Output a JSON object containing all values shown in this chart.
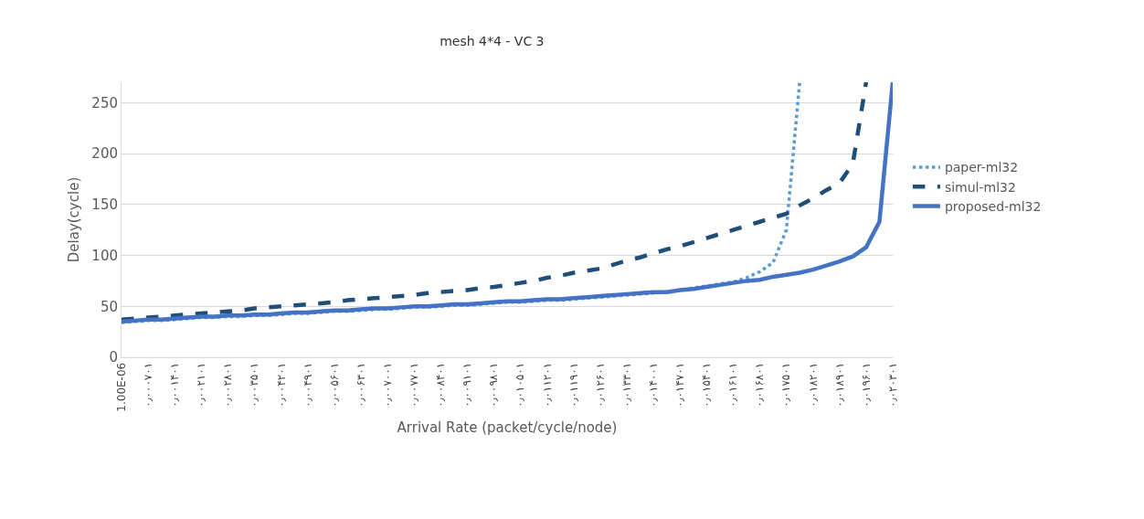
{
  "chart_data": {
    "type": "line",
    "title": "mesh 4*4 - VC 3",
    "xlabel": "Arrival Rate (packet/cycle/node)",
    "ylabel": "Delay(cycle)",
    "categories": [
      "1.00E-06",
      null,
      "۰٫۰۰۰۷۰۱",
      null,
      "۰٫۰۰۱۴۰۱",
      null,
      "۰٫۰۰۲۱۰۱",
      null,
      "۰٫۰۰۲۸۰۱",
      null,
      "۰٫۰۰۳۵۰۱",
      null,
      "۰٫۰۰۴۲۰۱",
      null,
      "۰٫۰۰۴۹۰۱",
      null,
      "۰٫۰۰۵۶۰۱",
      null,
      "۰٫۰۰۶۳۰۱",
      null,
      "۰٫۰۰۷۰۰۱",
      null,
      "۰٫۰۰۷۷۰۱",
      null,
      "۰٫۰۰۸۴۰۱",
      null,
      "۰٫۰۰۹۱۰۱",
      null,
      "۰٫۰۰۹۸۰۱",
      null,
      "۰٫۰۱۰۵۰۱",
      null,
      "۰٫۰۱۱۲۰۱",
      null,
      "۰٫۰۱۱۹۰۱",
      null,
      "۰٫۰۱۲۶۰۱",
      null,
      "۰٫۰۱۳۳۰۱",
      null,
      "۰٫۰۱۴۰۰۱",
      null,
      "۰٫۰۱۴۷۰۱",
      null,
      "۰٫۰۱۵۴۰۱",
      null,
      "۰٫۰۱۶۱۰۱",
      null,
      "۰٫۰۱۶۸۰۱",
      null,
      "۰٫۰۱۷۵۰۱",
      null,
      "۰٫۰۱۸۲۰۱",
      null,
      "۰٫۰۱۸۹۰۱",
      null,
      "۰٫۰۱۹۶۰۱",
      null,
      "۰٫۰۲۰۳۰۱"
    ],
    "ylim": [
      0,
      270
    ],
    "yticks": [
      0,
      50,
      100,
      150,
      200,
      250
    ],
    "grid": "y",
    "legend": "right",
    "series": [
      {
        "name": "paper-ml32",
        "color": "#5b9bd5",
        "line_style": "dotted",
        "values": [
          34,
          35,
          36,
          36,
          37,
          38,
          39,
          39,
          40,
          40,
          41,
          41,
          42,
          43,
          43,
          44,
          45,
          45,
          46,
          47,
          47,
          48,
          49,
          49,
          50,
          51,
          51,
          52,
          53,
          54,
          54,
          55,
          56,
          56,
          57,
          58,
          59,
          60,
          61,
          62,
          63,
          64,
          66,
          68,
          70,
          72,
          74,
          78,
          84,
          93,
          125,
          270,
          null,
          null,
          null,
          null,
          null,
          null,
          null
        ]
      },
      {
        "name": "simul-ml32",
        "color": "#1f4e79",
        "line_style": "dashed",
        "values": [
          37,
          38,
          39,
          40,
          41,
          42,
          43,
          44,
          45,
          46,
          48,
          49,
          50,
          51,
          52,
          53,
          54,
          56,
          57,
          58,
          59,
          60,
          61,
          63,
          64,
          65,
          66,
          68,
          69,
          71,
          73,
          75,
          78,
          80,
          83,
          85,
          87,
          91,
          95,
          98,
          102,
          106,
          109,
          113,
          117,
          121,
          125,
          129,
          133,
          137,
          141,
          149,
          156,
          164,
          171,
          190,
          270,
          null,
          null
        ]
      },
      {
        "name": "proposed-ml32",
        "color": "#4472c4",
        "line_style": "solid",
        "values": [
          35,
          36,
          37,
          37,
          38,
          39,
          40,
          40,
          41,
          41,
          42,
          42,
          43,
          44,
          44,
          45,
          46,
          46,
          47,
          48,
          48,
          49,
          50,
          50,
          51,
          52,
          52,
          53,
          54,
          55,
          55,
          56,
          57,
          57,
          58,
          59,
          60,
          61,
          62,
          63,
          64,
          64,
          66,
          67,
          69,
          71,
          73,
          75,
          76,
          79,
          81,
          83,
          86,
          90,
          94,
          99,
          108,
          133,
          270
        ]
      }
    ]
  }
}
